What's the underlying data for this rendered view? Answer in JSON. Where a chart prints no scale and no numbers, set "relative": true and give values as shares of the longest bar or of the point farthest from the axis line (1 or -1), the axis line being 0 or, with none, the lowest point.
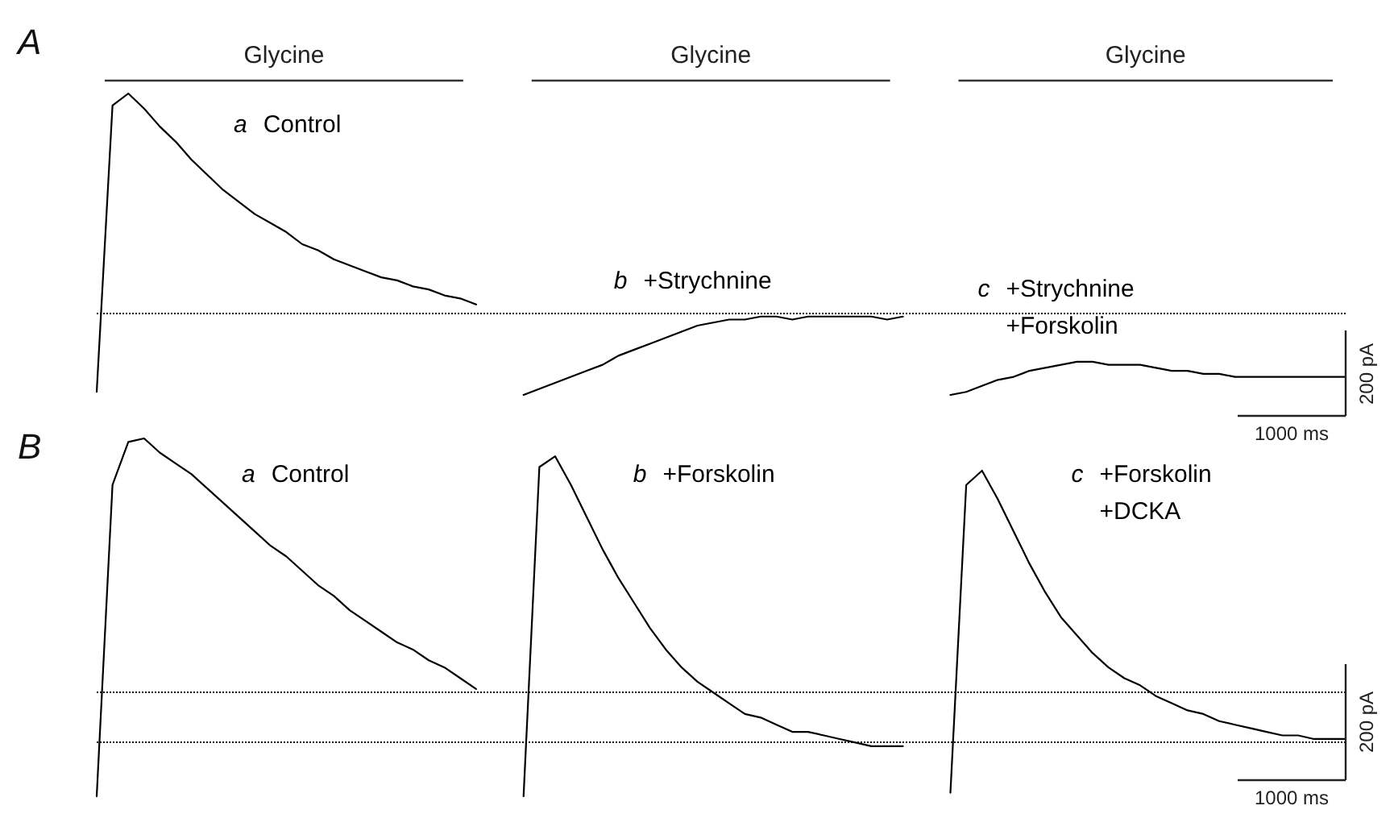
{
  "chart_data": [
    {
      "type": "line",
      "title": "A",
      "relative": true,
      "marker": "none",
      "categories": [
        null,
        null,
        null,
        null,
        null,
        null,
        null,
        null,
        null,
        null,
        null,
        null,
        null,
        null,
        null,
        null,
        null,
        null,
        null,
        null,
        null,
        null,
        null,
        null,
        null,
        null,
        null,
        null,
        null,
        null,
        null,
        null,
        null,
        null,
        null,
        null,
        null,
        null,
        null,
        null,
        null,
        null,
        null,
        null,
        null,
        null,
        null,
        null,
        null,
        null,
        null,
        null,
        null,
        null,
        null,
        null,
        null,
        null,
        null,
        null,
        null,
        null,
        null,
        null,
        null,
        null,
        null,
        null,
        null,
        null,
        null,
        null,
        null,
        null,
        null,
        null,
        null,
        null,
        null,
        null
      ],
      "series": [
        {
          "name": "a Control",
          "color": "#000000",
          "values": [
            0.01,
            0.96,
            1.0,
            0.95,
            0.89,
            0.84,
            0.78,
            0.73,
            0.68,
            0.64,
            0.6,
            0.57,
            0.54,
            0.5,
            0.48,
            0.45,
            0.43,
            0.41,
            0.39,
            0.38,
            0.36,
            0.35,
            0.33,
            0.32,
            0.3,
            null,
            null,
            null,
            null,
            null,
            null,
            null,
            null,
            null,
            null,
            null,
            null,
            null,
            null,
            null,
            null,
            null,
            null,
            null,
            null,
            null,
            null,
            null,
            null,
            null,
            null,
            null,
            null,
            null,
            null,
            null,
            null,
            null,
            null,
            null,
            null,
            null,
            null,
            null,
            null,
            null,
            null,
            null,
            null,
            null,
            null,
            null,
            null,
            null,
            null,
            null,
            null,
            null,
            null,
            null
          ]
        },
        {
          "name": "b +Strychnine",
          "color": "#000000",
          "values": [
            null,
            null,
            null,
            null,
            null,
            null,
            null,
            null,
            null,
            null,
            null,
            null,
            null,
            null,
            null,
            null,
            null,
            null,
            null,
            null,
            null,
            null,
            null,
            null,
            null,
            null,
            null,
            0,
            0.02,
            0.04,
            0.06,
            0.08,
            0.1,
            0.13,
            0.15,
            0.17,
            0.19,
            0.21,
            0.23,
            0.24,
            0.25,
            0.25,
            0.26,
            0.26,
            0.25,
            0.26,
            0.26,
            0.26,
            0.26,
            0.26,
            0.25,
            0.26,
            null,
            null,
            null,
            null,
            null,
            null,
            null,
            null,
            null,
            null,
            null,
            null,
            null,
            null,
            null,
            null,
            null,
            null,
            null,
            null,
            null,
            null,
            null,
            null,
            null,
            null,
            null,
            null
          ]
        },
        {
          "name": "c +Strychnine +Forskolin",
          "color": "#000000",
          "values": [
            null,
            null,
            null,
            null,
            null,
            null,
            null,
            null,
            null,
            null,
            null,
            null,
            null,
            null,
            null,
            null,
            null,
            null,
            null,
            null,
            null,
            null,
            null,
            null,
            null,
            null,
            null,
            null,
            null,
            null,
            null,
            null,
            null,
            null,
            null,
            null,
            null,
            null,
            null,
            null,
            null,
            null,
            null,
            null,
            null,
            null,
            null,
            null,
            null,
            null,
            null,
            null,
            null,
            null,
            0,
            0.01,
            0.03,
            0.05,
            0.06,
            0.08,
            0.09,
            0.1,
            0.11,
            0.11,
            0.1,
            0.1,
            0.1,
            0.09,
            0.08,
            0.08,
            0.07,
            0.07,
            0.06,
            0.06,
            0.06,
            0.06,
            0.06,
            0.06,
            0.06,
            0.06
          ]
        }
      ],
      "ref_lines": [
        {
          "axis": "y",
          "value": 0.27,
          "line_style": "dotted",
          "color": "#000000"
        }
      ],
      "annotations": [
        "Glycine",
        "Glycine",
        "Glycine",
        "200 pA",
        "1000 ms"
      ]
    },
    {
      "type": "line",
      "title": "B",
      "relative": true,
      "marker": "none",
      "categories": [
        null,
        null,
        null,
        null,
        null,
        null,
        null,
        null,
        null,
        null,
        null,
        null,
        null,
        null,
        null,
        null,
        null,
        null,
        null,
        null,
        null,
        null,
        null,
        null,
        null,
        null,
        null,
        null,
        null,
        null,
        null,
        null,
        null,
        null,
        null,
        null,
        null,
        null,
        null,
        null,
        null,
        null,
        null,
        null,
        null,
        null,
        null,
        null,
        null,
        null,
        null,
        null,
        null,
        null,
        null,
        null,
        null,
        null,
        null,
        null,
        null,
        null,
        null,
        null,
        null,
        null,
        null,
        null,
        null,
        null,
        null,
        null,
        null,
        null,
        null,
        null,
        null,
        null,
        null,
        null
      ],
      "series": [
        {
          "name": "a Control",
          "color": "#000000",
          "values": [
            0,
            0.87,
            0.99,
            1.0,
            0.96,
            0.93,
            0.9,
            0.86,
            0.82,
            0.78,
            0.74,
            0.7,
            0.67,
            0.63,
            0.59,
            0.56,
            0.52,
            0.49,
            0.46,
            0.43,
            0.41,
            0.38,
            0.36,
            0.33,
            0.3,
            null,
            null,
            null,
            null,
            null,
            null,
            null,
            null,
            null,
            null,
            null,
            null,
            null,
            null,
            null,
            null,
            null,
            null,
            null,
            null,
            null,
            null,
            null,
            null,
            null,
            null,
            null,
            null,
            null,
            null,
            null,
            null,
            null,
            null,
            null,
            null,
            null,
            null,
            null,
            null,
            null,
            null,
            null,
            null,
            null,
            null,
            null,
            null,
            null,
            null,
            null,
            null,
            null,
            null,
            null
          ]
        },
        {
          "name": "b +Forskolin",
          "color": "#000000",
          "values": [
            null,
            null,
            null,
            null,
            null,
            null,
            null,
            null,
            null,
            null,
            null,
            null,
            null,
            null,
            null,
            null,
            null,
            null,
            null,
            null,
            null,
            null,
            null,
            null,
            null,
            null,
            null,
            0,
            0.92,
            0.95,
            0.87,
            0.78,
            0.69,
            0.61,
            0.54,
            0.47,
            0.41,
            0.36,
            0.32,
            0.29,
            0.26,
            0.23,
            0.22,
            0.2,
            0.18,
            0.18,
            0.17,
            0.16,
            0.15,
            0.14,
            0.14,
            0.14,
            null,
            null,
            null,
            null,
            null,
            null,
            null,
            null,
            null,
            null,
            null,
            null,
            null,
            null,
            null,
            null,
            null,
            null,
            null,
            null,
            null,
            null,
            null,
            null,
            null,
            null,
            null,
            null
          ]
        },
        {
          "name": "c +Forskolin +DCKA",
          "color": "#000000",
          "values": [
            null,
            null,
            null,
            null,
            null,
            null,
            null,
            null,
            null,
            null,
            null,
            null,
            null,
            null,
            null,
            null,
            null,
            null,
            null,
            null,
            null,
            null,
            null,
            null,
            null,
            null,
            null,
            null,
            null,
            null,
            null,
            null,
            null,
            null,
            null,
            null,
            null,
            null,
            null,
            null,
            null,
            null,
            null,
            null,
            null,
            null,
            null,
            null,
            null,
            null,
            null,
            null,
            null,
            null,
            0.01,
            0.87,
            0.91,
            0.83,
            0.74,
            0.65,
            0.57,
            0.5,
            0.45,
            0.4,
            0.36,
            0.33,
            0.31,
            0.28,
            0.26,
            0.24,
            0.23,
            0.21,
            0.2,
            0.19,
            0.18,
            0.17,
            0.17,
            0.16,
            0.16,
            0.16
          ]
        }
      ],
      "ref_lines": [
        {
          "axis": "y",
          "value": 0.29,
          "line_style": "dotted",
          "color": "#000000"
        },
        {
          "axis": "y",
          "value": 0.15,
          "line_style": "dotted",
          "color": "#000000"
        }
      ],
      "annotations": [
        "200 pA",
        "1000 ms"
      ]
    }
  ]
}
